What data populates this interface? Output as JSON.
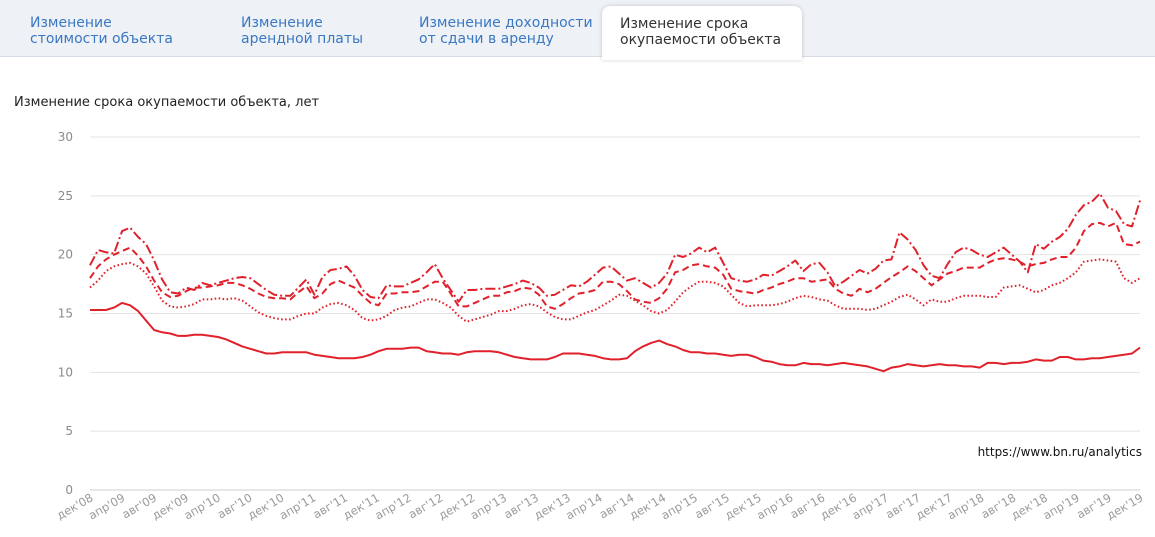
{
  "tabs": [
    {
      "line1": "Изменение",
      "line2": "стоимости объекта",
      "active": false
    },
    {
      "line1": "Изменение",
      "line2": "арендной платы",
      "active": false
    },
    {
      "line1": "Изменение доходности",
      "line2": "от сдачи в аренду",
      "active": false
    },
    {
      "line1": "Изменение срока",
      "line2": "окупаемости объекта",
      "active": true
    }
  ],
  "colors": {
    "accent": "#e0212b",
    "tab_link": "#3a78c3",
    "grid": "#e3e3e3"
  },
  "source_text": "https://www.bn.ru/analytics",
  "chart_data": {
    "type": "line",
    "title": "Изменение срока окупаемости объекта, лет",
    "xlabel": "",
    "ylabel": "",
    "ylim": [
      0,
      30
    ],
    "yticks": [
      0,
      5,
      10,
      15,
      20,
      25,
      30
    ],
    "grid": true,
    "legend": "none",
    "x_start": "2008-12",
    "x_end": "2019-12",
    "xtick_labels": [
      "дек'08",
      "апр'09",
      "авг'09",
      "дек'09",
      "апр'10",
      "авг'10",
      "дек'10",
      "апр'11",
      "авг'11",
      "дек'11",
      "апр'12",
      "авг'12",
      "дек'12",
      "апр'13",
      "авг'13",
      "дек'13",
      "апр'14",
      "авг'14",
      "дек'14",
      "апр'15",
      "авг'15",
      "дек'15",
      "апр'16",
      "авг'16",
      "дек'16",
      "апр'17",
      "авг'17",
      "дек'17",
      "апр'18",
      "авг'18",
      "дек'18",
      "апр'19",
      "авг'19",
      "дек'19"
    ],
    "series": [
      {
        "style": "dashdot",
        "values": [
          19.1,
          20.4,
          20.2,
          20.1,
          22.0,
          22.3,
          21.5,
          20.9,
          19.5,
          17.9,
          16.8,
          16.7,
          17.2,
          17.0,
          17.6,
          17.4,
          17.6,
          17.8,
          18.0,
          18.1,
          18.0,
          17.5,
          17.0,
          16.6,
          16.5,
          16.5,
          17.2,
          17.9,
          16.6,
          18.1,
          18.7,
          18.8,
          19.0,
          18.2,
          17.0,
          16.4,
          16.3,
          17.4,
          17.3,
          17.3,
          17.6,
          17.9,
          18.5,
          19.2,
          18.0,
          17.0,
          16.0,
          17.0,
          17.0,
          17.1,
          17.1,
          17.1,
          17.3,
          17.5,
          17.8,
          17.6,
          17.2,
          16.5,
          16.6,
          17.0,
          17.4,
          17.3,
          17.7,
          18.3,
          18.9,
          19.0,
          18.4,
          17.8,
          18.0,
          17.6,
          17.2,
          17.6,
          18.4,
          20.0,
          19.8,
          20.1,
          20.6,
          20.2,
          20.6,
          19.3,
          18.0,
          17.8,
          17.7,
          17.9,
          18.3,
          18.2,
          18.6,
          19.0,
          19.5,
          18.6,
          19.2,
          19.3,
          18.5,
          17.3,
          17.7,
          18.2,
          18.7,
          18.4,
          18.8,
          19.5,
          19.6,
          21.9,
          21.3,
          20.4,
          19.1,
          18.2,
          18.0,
          19.2,
          20.2,
          20.6,
          20.4,
          20.0,
          19.8,
          20.2,
          20.6,
          20.0,
          19.4,
          18.5,
          20.9,
          20.5,
          21.1,
          21.5,
          22.2,
          23.4,
          24.2,
          24.5,
          25.2,
          24.0,
          23.7,
          22.6,
          22.4,
          24.6
        ]
      },
      {
        "style": "dashed",
        "values": [
          18.0,
          19.0,
          19.6,
          20.0,
          20.3,
          20.6,
          19.9,
          19.0,
          17.8,
          16.8,
          16.4,
          16.5,
          16.9,
          17.2,
          17.2,
          17.3,
          17.4,
          17.6,
          17.6,
          17.4,
          17.1,
          16.7,
          16.4,
          16.3,
          16.3,
          16.2,
          16.8,
          17.3,
          16.3,
          16.7,
          17.5,
          17.8,
          17.5,
          17.2,
          16.5,
          15.9,
          15.7,
          16.7,
          16.7,
          16.8,
          16.8,
          16.9,
          17.3,
          17.7,
          17.7,
          16.7,
          15.6,
          15.6,
          15.9,
          16.2,
          16.5,
          16.5,
          16.8,
          16.9,
          17.2,
          17.1,
          16.6,
          15.6,
          15.4,
          15.8,
          16.3,
          16.7,
          16.8,
          17.0,
          17.7,
          17.7,
          17.5,
          16.9,
          16.2,
          16.0,
          15.9,
          16.3,
          17.1,
          18.5,
          18.7,
          19.1,
          19.2,
          19.0,
          18.9,
          18.3,
          17.1,
          16.9,
          16.8,
          16.7,
          17.0,
          17.2,
          17.5,
          17.7,
          18.0,
          18.0,
          17.7,
          17.8,
          17.9,
          17.1,
          16.7,
          16.5,
          17.1,
          16.8,
          17.1,
          17.6,
          18.1,
          18.5,
          19.0,
          18.6,
          18.0,
          17.4,
          17.9,
          18.4,
          18.6,
          18.9,
          18.9,
          18.9,
          19.3,
          19.6,
          19.7,
          19.6,
          19.4,
          19.0,
          19.2,
          19.3,
          19.6,
          19.8,
          19.8,
          20.6,
          22.0,
          22.6,
          22.7,
          22.4,
          22.7,
          20.9,
          20.8,
          21.1
        ]
      },
      {
        "style": "dotted",
        "values": [
          17.2,
          17.8,
          18.6,
          19.0,
          19.2,
          19.3,
          19.0,
          18.4,
          17.3,
          16.1,
          15.6,
          15.5,
          15.6,
          15.8,
          16.2,
          16.2,
          16.3,
          16.2,
          16.3,
          16.1,
          15.6,
          15.1,
          14.8,
          14.6,
          14.5,
          14.5,
          14.8,
          15.0,
          15.0,
          15.5,
          15.8,
          15.9,
          15.7,
          15.3,
          14.6,
          14.4,
          14.5,
          14.8,
          15.3,
          15.5,
          15.6,
          15.9,
          16.2,
          16.2,
          15.9,
          15.5,
          14.8,
          14.3,
          14.5,
          14.7,
          14.9,
          15.2,
          15.2,
          15.4,
          15.7,
          15.8,
          15.6,
          15.1,
          14.7,
          14.5,
          14.5,
          14.8,
          15.1,
          15.3,
          15.7,
          16.1,
          16.6,
          16.5,
          16.1,
          15.7,
          15.2,
          15.0,
          15.3,
          16.0,
          16.8,
          17.3,
          17.7,
          17.7,
          17.6,
          17.3,
          16.6,
          15.9,
          15.6,
          15.7,
          15.7,
          15.7,
          15.8,
          16.0,
          16.3,
          16.5,
          16.4,
          16.2,
          16.1,
          15.7,
          15.4,
          15.4,
          15.4,
          15.3,
          15.4,
          15.7,
          16.0,
          16.4,
          16.6,
          16.2,
          15.7,
          16.2,
          16.0,
          16.0,
          16.3,
          16.5,
          16.5,
          16.5,
          16.4,
          16.4,
          17.2,
          17.3,
          17.4,
          17.1,
          16.8,
          17.0,
          17.4,
          17.6,
          18.0,
          18.5,
          19.4,
          19.5,
          19.6,
          19.5,
          19.4,
          18.0,
          17.6,
          18.0
        ]
      },
      {
        "style": "solid",
        "values": [
          15.3,
          15.3,
          15.3,
          15.5,
          15.9,
          15.7,
          15.2,
          14.4,
          13.6,
          13.4,
          13.3,
          13.1,
          13.1,
          13.2,
          13.2,
          13.1,
          13.0,
          12.8,
          12.5,
          12.2,
          12.0,
          11.8,
          11.6,
          11.6,
          11.7,
          11.7,
          11.7,
          11.7,
          11.5,
          11.4,
          11.3,
          11.2,
          11.2,
          11.2,
          11.3,
          11.5,
          11.8,
          12.0,
          12.0,
          12.0,
          12.1,
          12.1,
          11.8,
          11.7,
          11.6,
          11.6,
          11.5,
          11.7,
          11.8,
          11.8,
          11.8,
          11.7,
          11.5,
          11.3,
          11.2,
          11.1,
          11.1,
          11.1,
          11.3,
          11.6,
          11.6,
          11.6,
          11.5,
          11.4,
          11.2,
          11.1,
          11.1,
          11.2,
          11.8,
          12.2,
          12.5,
          12.7,
          12.4,
          12.2,
          11.9,
          11.7,
          11.7,
          11.6,
          11.6,
          11.5,
          11.4,
          11.5,
          11.5,
          11.3,
          11.0,
          10.9,
          10.7,
          10.6,
          10.6,
          10.8,
          10.7,
          10.7,
          10.6,
          10.7,
          10.8,
          10.7,
          10.6,
          10.5,
          10.3,
          10.1,
          10.4,
          10.5,
          10.7,
          10.6,
          10.5,
          10.6,
          10.7,
          10.6,
          10.6,
          10.5,
          10.5,
          10.4,
          10.8,
          10.8,
          10.7,
          10.8,
          10.8,
          10.9,
          11.1,
          11.0,
          11.0,
          11.3,
          11.3,
          11.1,
          11.1,
          11.2,
          11.2,
          11.3,
          11.4,
          11.5,
          11.6,
          12.1
        ]
      }
    ]
  }
}
